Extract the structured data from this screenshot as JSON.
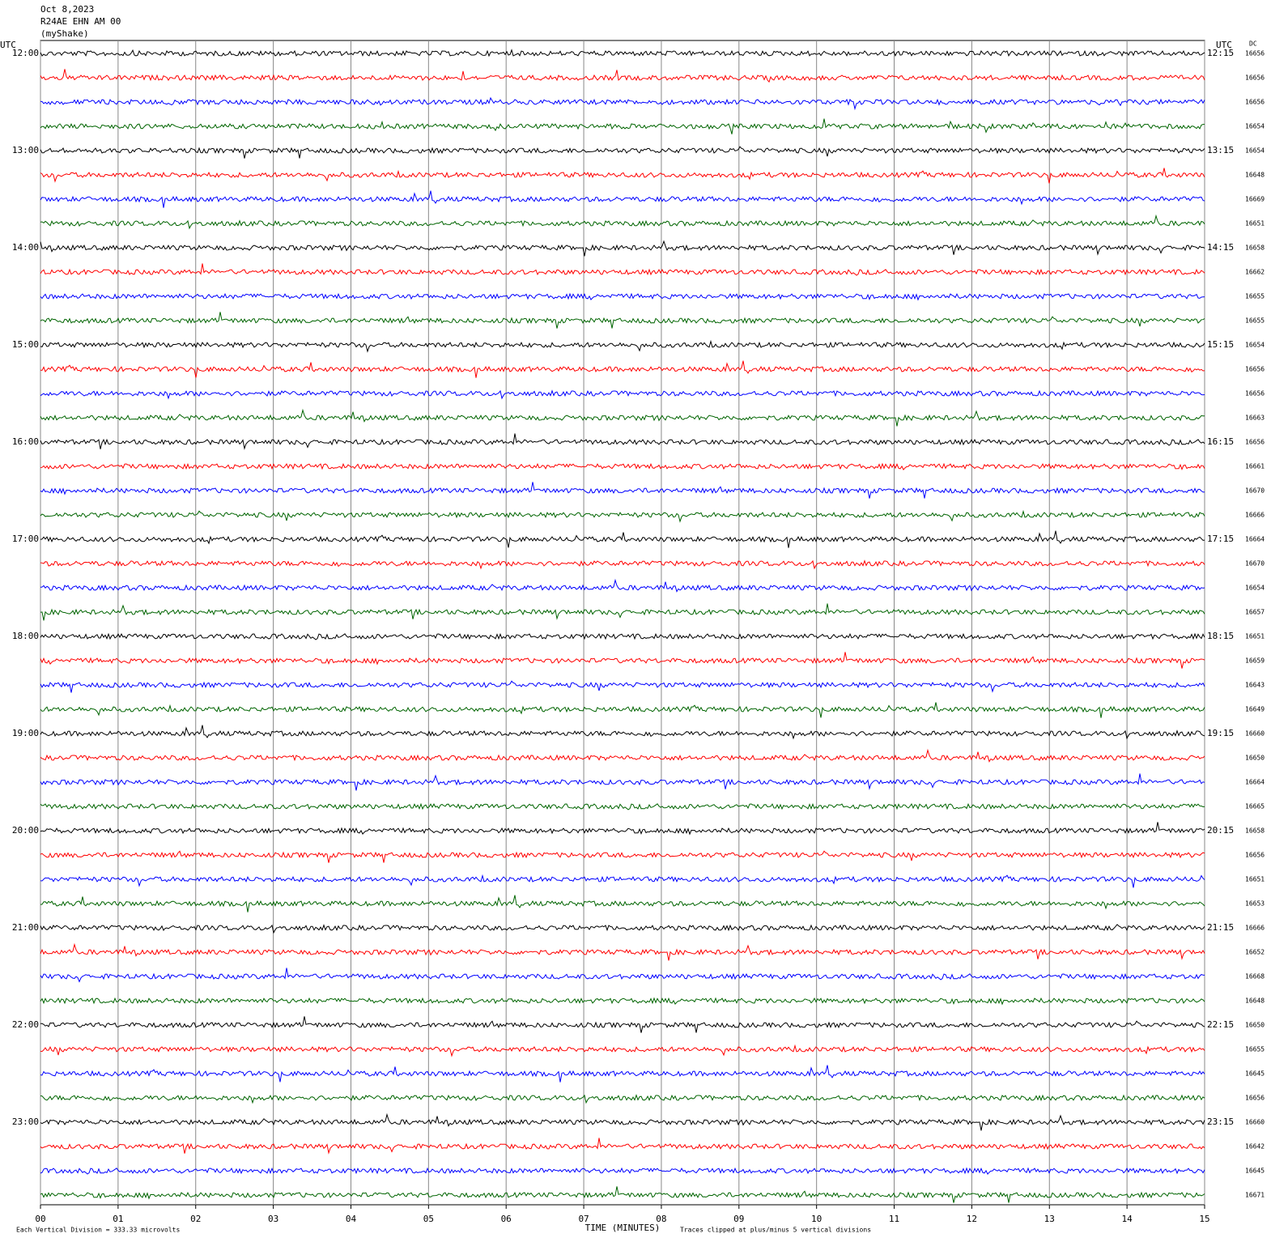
{
  "chart_data": {
    "type": "helicorder",
    "date": "Oct 8,2023",
    "station": "R24AE EHN AM 00",
    "network": "(myShake)",
    "left_axis_label": "UTC",
    "right_axis_label": "UTC",
    "dc_label": "DC",
    "left_labels": [
      "12:00",
      "13:00",
      "14:00",
      "15:00",
      "16:00",
      "17:00",
      "18:00",
      "19:00",
      "20:00",
      "21:00",
      "22:00",
      "23:00"
    ],
    "right_labels": [
      "12:15",
      "13:15",
      "14:15",
      "15:15",
      "16:15",
      "17:15",
      "18:15",
      "19:15",
      "20:15",
      "21:15",
      "22:15",
      "23:15"
    ],
    "dc_values": [
      16656,
      16656,
      16656,
      16654,
      16654,
      16648,
      16669,
      16651,
      16658,
      16662,
      16655,
      16655,
      16654,
      16656,
      16656,
      16663,
      16656,
      16661,
      16670,
      16666,
      16664,
      16670,
      16654,
      16657,
      16651,
      16659,
      16643,
      16649,
      16660,
      16650,
      16664,
      16665,
      16658,
      16656,
      16651,
      16653,
      16666,
      16652,
      16668,
      16648,
      16650,
      16655,
      16645,
      16656,
      16660,
      16642,
      16645,
      16671
    ],
    "trace_colors": [
      "#000000",
      "#ff0000",
      "#0000ff",
      "#006400"
    ],
    "xlim": [
      0,
      15
    ],
    "xticks": [
      {
        "value": 0,
        "label": "00"
      },
      {
        "value": 1,
        "label": "01"
      },
      {
        "value": 2,
        "label": "02"
      },
      {
        "value": 3,
        "label": "03"
      },
      {
        "value": 4,
        "label": "04"
      },
      {
        "value": 5,
        "label": "05"
      },
      {
        "value": 6,
        "label": "06"
      },
      {
        "value": 7,
        "label": "07"
      },
      {
        "value": 8,
        "label": "08"
      },
      {
        "value": 9,
        "label": "09"
      },
      {
        "value": 10,
        "label": "10"
      },
      {
        "value": 11,
        "label": "11"
      },
      {
        "value": 12,
        "label": "12"
      },
      {
        "value": 13,
        "label": "13"
      },
      {
        "value": 14,
        "label": "14"
      },
      {
        "value": 15,
        "label": "15"
      }
    ],
    "grid": true,
    "x_axis_label": "TIME (MINUTES)",
    "scale_note": "Each Vertical Division =  333.33 microvolts",
    "clip_note": "Traces clipped at plus/minus 5 vertical divisions"
  }
}
